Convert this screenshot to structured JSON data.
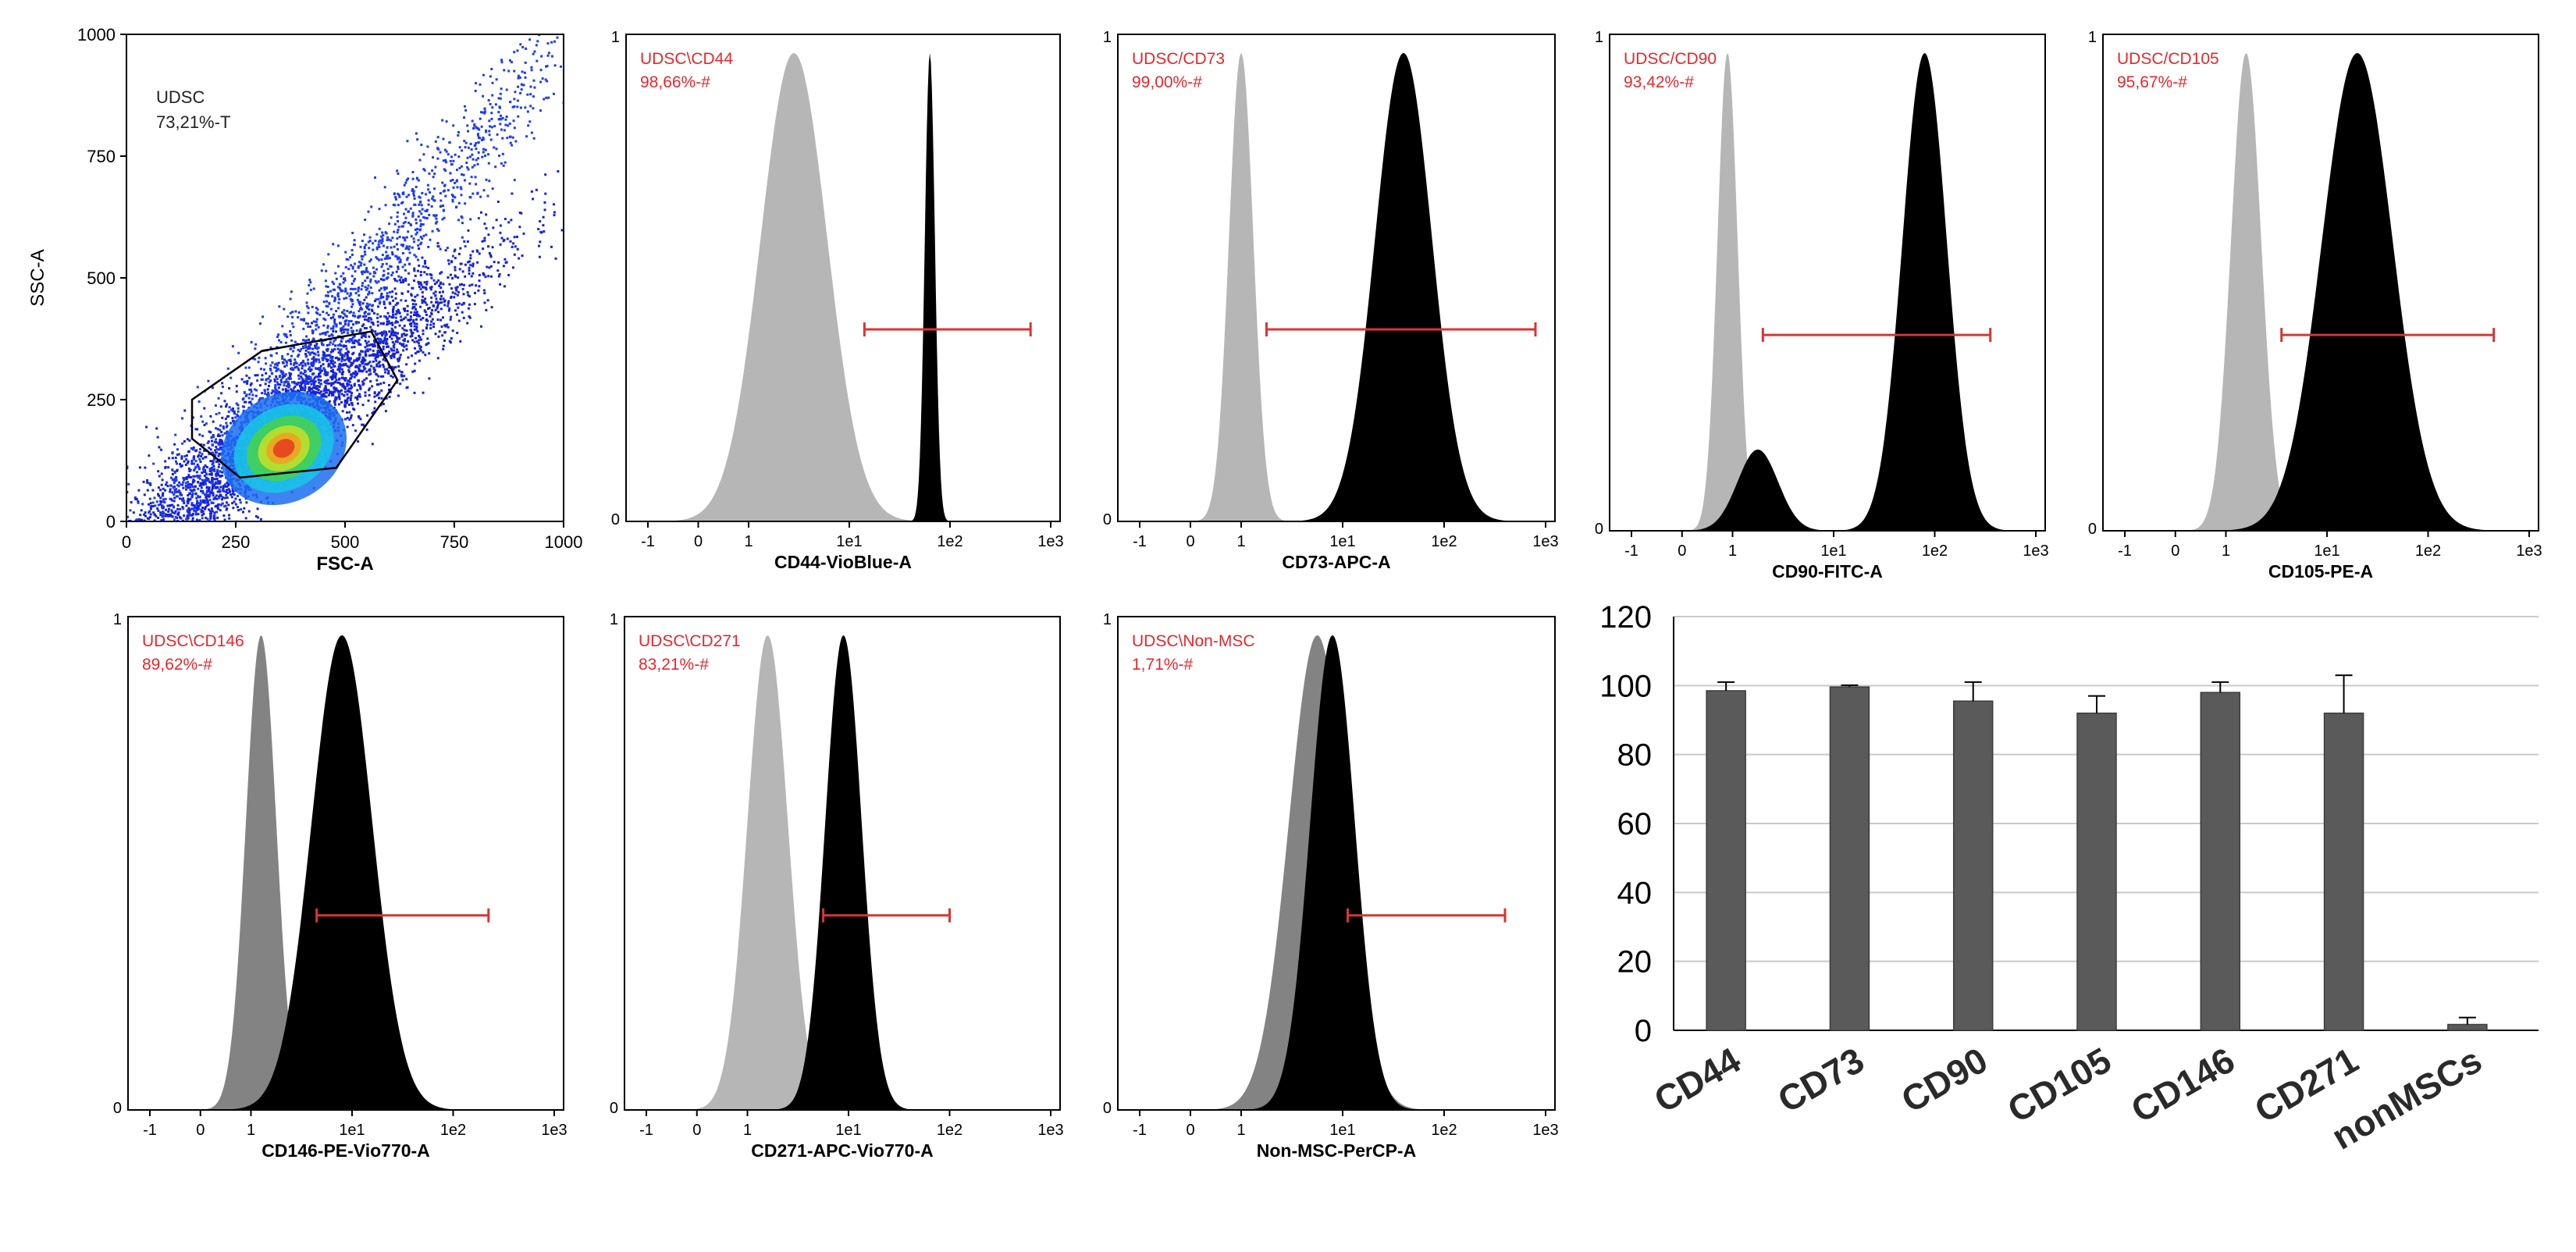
{
  "chart_data": [
    {
      "type": "scatter",
      "title": "UDSC",
      "gate_label": "UDSC",
      "gate_pct": "73,21%-T",
      "xlabel": "FSC-A",
      "ylabel": "SSC-A",
      "xlim": [
        0,
        1000
      ],
      "ylim": [
        0,
        1000
      ],
      "xticks": [
        "0",
        "250",
        "500",
        "750",
        "1000"
      ],
      "yticks": [
        "0",
        "250",
        "500",
        "750",
        "1000"
      ],
      "gate_polygon": [
        [
          150,
          250
        ],
        [
          150,
          170
        ],
        [
          260,
          90
        ],
        [
          480,
          110
        ],
        [
          620,
          290
        ],
        [
          560,
          390
        ],
        [
          310,
          350
        ]
      ]
    },
    {
      "type": "histogram",
      "gate_label": "UDSC\\CD44",
      "gate_pct": "98,66%-#",
      "xlabel": "CD44-VioBlue-A",
      "xticks": [
        "-1",
        "0",
        "1",
        "1e1",
        "1e2",
        "1e3"
      ],
      "ymax_label": "1",
      "ymin_label": "0",
      "isotype_peak": 0.45,
      "isotype_width": 0.33,
      "stained_peak": 1.8,
      "stained_width": 0.05,
      "gate_range": [
        1.15,
        2.8
      ]
    },
    {
      "type": "histogram",
      "gate_label": "UDSC/CD73",
      "gate_pct": "99,00%-#",
      "xlabel": "CD73-APC-A",
      "xticks": [
        "-1",
        "0",
        "1",
        "1e1",
        "1e2",
        "1e3"
      ],
      "ymax_label": "1",
      "ymin_label": "0",
      "isotype_peak": 0.0,
      "isotype_width": 0.12,
      "stained_peak": 1.6,
      "stained_width": 0.28,
      "gate_range": [
        0.25,
        2.9
      ]
    },
    {
      "type": "histogram",
      "gate_label": "UDSC/CD90",
      "gate_pct": "93,42%-#",
      "xlabel": "CD90-FITC-A",
      "xticks": [
        "-1",
        "0",
        "1",
        "1e1",
        "1e2",
        "1e3"
      ],
      "ymax_label": "1",
      "ymin_label": "0",
      "isotype_peak": -0.05,
      "isotype_width": 0.1,
      "stained_peak": 1.9,
      "stained_width": 0.22,
      "secondary_peak": 0.25,
      "secondary_height": 0.17,
      "secondary_width": 0.2,
      "gate_range": [
        0.3,
        2.55
      ]
    },
    {
      "type": "histogram",
      "gate_label": "UDSC/CD105",
      "gate_pct": "95,67%-#",
      "xlabel": "CD105-PE-A",
      "xticks": [
        "-1",
        "0",
        "1",
        "1e1",
        "1e2",
        "1e3"
      ],
      "ymax_label": "1",
      "ymin_label": "0",
      "isotype_peak": 0.2,
      "isotype_width": 0.15,
      "stained_peak": 1.3,
      "stained_width": 0.35,
      "gate_range": [
        0.55,
        2.65
      ]
    },
    {
      "type": "histogram",
      "gate_label": "UDSC\\CD146",
      "gate_pct": "89,62%-#",
      "xlabel": "CD146-PE-Vio770-A",
      "xticks": [
        "-1",
        "0",
        "1",
        "1e1",
        "1e2",
        "1e3"
      ],
      "ymax_label": "1",
      "ymin_label": "0",
      "isotype_peak": 0.1,
      "isotype_width": 0.15,
      "stained_peak": 0.9,
      "stained_width": 0.3,
      "gate_range": [
        0.65,
        2.35
      ]
    },
    {
      "type": "histogram",
      "gate_label": "UDSC\\CD271",
      "gate_pct": "83,21%-#",
      "xlabel": "CD271-APC-Vio770-A",
      "xticks": [
        "-1",
        "0",
        "1",
        "1e1",
        "1e2",
        "1e3"
      ],
      "ymax_label": "1",
      "ymin_label": "0",
      "isotype_peak": 0.2,
      "isotype_width": 0.2,
      "stained_peak": 0.95,
      "stained_width": 0.18,
      "gate_range": [
        0.75,
        2.0
      ]
    },
    {
      "type": "histogram",
      "gate_label": "UDSC\\Non-MSC",
      "gate_pct": "1,71%-#",
      "xlabel": "Non-MSC-PerCP-A",
      "xticks": [
        "-1",
        "0",
        "1",
        "1e1",
        "1e2",
        "1e3"
      ],
      "ymax_label": "1",
      "ymin_label": "0",
      "isotype_peak": 0.75,
      "isotype_width": 0.28,
      "stained_peak": 0.9,
      "stained_width": 0.22,
      "gate_range": [
        1.05,
        2.6
      ]
    },
    {
      "type": "bar",
      "categories": [
        "CD44",
        "CD73",
        "CD90",
        "CD105",
        "CD146",
        "CD271",
        "nonMSCs"
      ],
      "values": [
        98.5,
        99.6,
        95.5,
        92,
        98,
        92,
        1.7
      ],
      "errors": [
        2.5,
        0.5,
        5.5,
        5,
        3,
        11,
        2
      ],
      "ylim": [
        0,
        120
      ],
      "yticks": [
        "0",
        "20",
        "40",
        "60",
        "80",
        "100",
        "120"
      ],
      "bar_color": "#5a5a5a"
    }
  ],
  "colors": {
    "gate_text": "#e8262b",
    "gate_line": "#d73535",
    "isotype_light": "#b6b6b6",
    "isotype_dark": "#838383",
    "stained": "#000000",
    "grid": "#c9c9c9"
  }
}
